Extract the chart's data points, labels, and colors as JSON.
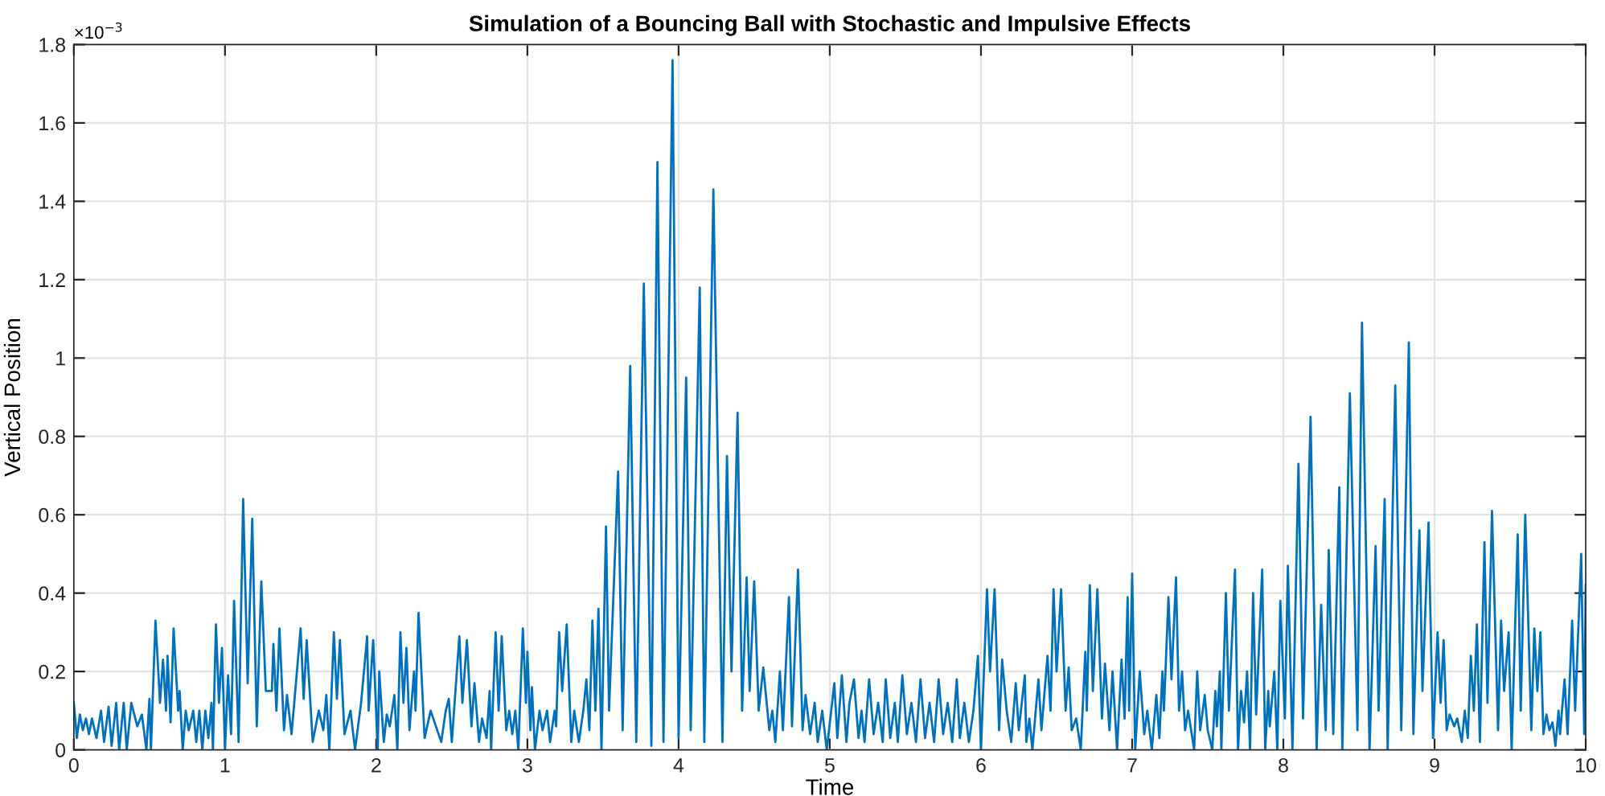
{
  "chart_data": {
    "type": "line",
    "title": "Simulation of a Bouncing Ball with Stochastic and Impulsive Effects",
    "xlabel": "Time",
    "ylabel": "Vertical Position",
    "annotations": [
      "×10$^{−3}$"
    ],
    "xlim": [
      0,
      10
    ],
    "xticks": [
      0,
      1,
      2,
      3,
      4,
      5,
      6,
      7,
      8,
      9,
      10
    ],
    "ylim": [
      0,
      1.8
    ],
    "yticks": [
      0,
      0.2,
      0.4,
      0.6,
      0.8,
      1,
      1.2,
      1.4,
      1.6,
      1.8
    ],
    "grid": true,
    "marker": "none",
    "line_style": "solid",
    "series": [
      {
        "color": "#0072bd",
        "x": [
          0,
          0.02,
          0.04,
          0.06,
          0.08,
          0.1,
          0.12,
          0.15,
          0.18,
          0.2,
          0.23,
          0.25,
          0.28,
          0.3,
          0.33,
          0.35,
          0.38,
          0.42,
          0.45,
          0.48,
          0.5,
          0.51,
          0.54,
          0.57,
          0.59,
          0.61,
          0.62,
          0.64,
          0.66,
          0.69,
          0.7,
          0.72,
          0.74,
          0.76,
          0.79,
          0.81,
          0.83,
          0.85,
          0.87,
          0.89,
          0.91,
          0.92,
          0.94,
          0.96,
          0.98,
          1.0,
          1.02,
          1.04,
          1.06,
          1.09,
          1.12,
          1.15,
          1.18,
          1.21,
          1.24,
          1.27,
          1.31,
          1.32,
          1.34,
          1.36,
          1.39,
          1.41,
          1.44,
          1.5,
          1.52,
          1.54,
          1.58,
          1.62,
          1.65,
          1.67,
          1.69,
          1.72,
          1.74,
          1.76,
          1.79,
          1.83,
          1.86,
          1.9,
          1.94,
          1.95,
          1.98,
          2.01,
          2.02,
          2.05,
          2.07,
          2.09,
          2.12,
          2.14,
          2.16,
          2.18,
          2.2,
          2.22,
          2.25,
          2.26,
          2.28,
          2.32,
          2.36,
          2.43,
          2.46,
          2.48,
          2.5,
          2.55,
          2.57,
          2.6,
          2.63,
          2.65,
          2.68,
          2.7,
          2.73,
          2.75,
          2.76,
          2.79,
          2.81,
          2.83,
          2.86,
          2.88,
          2.9,
          2.92,
          2.94,
          2.97,
          2.99,
          3.0,
          3.02,
          3.03,
          3.05,
          3.08,
          3.1,
          3.13,
          3.15,
          3.18,
          3.19,
          3.21,
          3.23,
          3.26,
          3.29,
          3.31,
          3.34,
          3.37,
          3.39,
          3.41,
          3.43,
          3.45,
          3.47,
          3.49,
          3.52,
          3.54,
          3.6,
          3.63,
          3.68,
          3.72,
          3.77,
          3.82,
          3.86,
          3.9,
          3.96,
          4.0,
          4.05,
          4.08,
          4.14,
          4.17,
          4.23,
          4.29,
          4.32,
          4.35,
          4.39,
          4.42,
          4.45,
          4.47,
          4.5,
          4.53,
          4.56,
          4.6,
          4.62,
          4.64,
          4.67,
          4.69,
          4.73,
          4.75,
          4.79,
          4.82,
          4.84,
          4.87,
          4.9,
          4.92,
          4.95,
          4.98,
          5.03,
          5.05,
          5.08,
          5.11,
          5.13,
          5.16,
          5.19,
          5.21,
          5.23,
          5.26,
          5.29,
          5.32,
          5.35,
          5.37,
          5.4,
          5.43,
          5.45,
          5.48,
          5.51,
          5.54,
          5.57,
          5.6,
          5.63,
          5.66,
          5.69,
          5.72,
          5.75,
          5.78,
          5.81,
          5.84,
          5.86,
          5.89,
          5.92,
          5.95,
          5.98,
          6.0,
          6.04,
          6.06,
          6.09,
          6.12,
          6.14,
          6.17,
          6.2,
          6.23,
          6.25,
          6.29,
          6.3,
          6.32,
          6.34,
          6.38,
          6.4,
          6.44,
          6.46,
          6.48,
          6.5,
          6.53,
          6.56,
          6.58,
          6.6,
          6.63,
          6.66,
          6.69,
          6.7,
          6.72,
          6.74,
          6.77,
          6.8,
          6.82,
          6.85,
          6.87,
          6.9,
          6.93,
          6.95,
          6.97,
          6.98,
          7.0,
          7.02,
          7.05,
          7.08,
          7.1,
          7.13,
          7.16,
          7.18,
          7.2,
          7.21,
          7.24,
          7.26,
          7.29,
          7.31,
          7.33,
          7.35,
          7.37,
          7.41,
          7.43,
          7.45,
          7.48,
          7.5,
          7.53,
          7.55,
          7.56,
          7.58,
          7.59,
          7.62,
          7.64,
          7.68,
          7.7,
          7.72,
          7.74,
          7.76,
          7.78,
          7.8,
          7.82,
          7.86,
          7.88,
          7.9,
          7.91,
          7.94,
          7.96,
          7.98,
          8.01,
          8.03,
          8.06,
          8.1,
          8.13,
          8.18,
          8.22,
          8.25,
          8.28,
          8.3,
          8.33,
          8.37,
          8.39,
          8.44,
          8.49,
          8.52,
          8.57,
          8.61,
          8.63,
          8.67,
          8.69,
          8.74,
          8.78,
          8.83,
          8.86,
          8.9,
          8.92,
          8.96,
          8.99,
          9.02,
          9.04,
          9.06,
          9.08,
          9.1,
          9.13,
          9.15,
          9.18,
          9.2,
          9.22,
          9.24,
          9.26,
          9.28,
          9.3,
          9.33,
          9.35,
          9.38,
          9.42,
          9.44,
          9.46,
          9.49,
          9.51,
          9.55,
          9.57,
          9.6,
          9.64,
          9.66,
          9.68,
          9.7,
          9.72,
          9.74,
          9.76,
          9.78,
          9.8,
          9.82,
          9.83,
          9.86,
          9.88,
          9.91,
          9.93,
          9.97,
          9.99,
          10.0
        ],
        "values": [
          0.12,
          0.03,
          0.09,
          0.05,
          0.08,
          0.04,
          0.08,
          0.03,
          0.1,
          0.02,
          0.11,
          0.01,
          0.12,
          0.0,
          0.12,
          0.0,
          0.12,
          0.06,
          0.09,
          0.0,
          0.13,
          0.0,
          0.33,
          0.12,
          0.23,
          0.1,
          0.24,
          0.07,
          0.31,
          0.1,
          0.15,
          0.0,
          0.1,
          0.05,
          0.1,
          0.02,
          0.1,
          0.0,
          0.1,
          0.03,
          0.12,
          0.0,
          0.32,
          0.12,
          0.26,
          0.0,
          0.19,
          0.04,
          0.38,
          0.02,
          0.64,
          0.17,
          0.59,
          0.06,
          0.43,
          0.15,
          0.15,
          0.27,
          0.1,
          0.31,
          0.05,
          0.14,
          0.04,
          0.31,
          0.13,
          0.28,
          0.02,
          0.1,
          0.05,
          0.14,
          0.0,
          0.3,
          0.13,
          0.28,
          0.04,
          0.1,
          0.0,
          0.12,
          0.29,
          0.1,
          0.28,
          0.0,
          0.2,
          0.02,
          0.09,
          0.06,
          0.14,
          0.0,
          0.3,
          0.12,
          0.26,
          0.05,
          0.2,
          0.1,
          0.35,
          0.03,
          0.1,
          0.02,
          0.1,
          0.13,
          0.02,
          0.29,
          0.12,
          0.28,
          0.06,
          0.17,
          0.02,
          0.08,
          0.03,
          0.15,
          0.0,
          0.3,
          0.1,
          0.29,
          0.05,
          0.1,
          0.04,
          0.1,
          0.0,
          0.31,
          0.12,
          0.25,
          0.05,
          0.16,
          0.0,
          0.1,
          0.05,
          0.1,
          0.02,
          0.1,
          0.06,
          0.3,
          0.15,
          0.32,
          0.02,
          0.1,
          0.02,
          0.1,
          0.18,
          0.05,
          0.33,
          0.1,
          0.36,
          0.0,
          0.57,
          0.1,
          0.71,
          0.05,
          0.98,
          0.02,
          1.19,
          0.01,
          1.5,
          0.02,
          1.76,
          0.03,
          0.95,
          0.05,
          1.18,
          0.02,
          1.43,
          0.02,
          0.75,
          0.2,
          0.86,
          0.1,
          0.44,
          0.15,
          0.43,
          0.1,
          0.21,
          0.05,
          0.1,
          0.02,
          0.2,
          0.05,
          0.39,
          0.06,
          0.46,
          0.05,
          0.14,
          0.04,
          0.12,
          0.02,
          0.1,
          0.0,
          0.17,
          0.03,
          0.19,
          0.02,
          0.12,
          0.18,
          0.03,
          0.1,
          0.02,
          0.18,
          0.04,
          0.12,
          0.02,
          0.18,
          0.03,
          0.12,
          0.02,
          0.19,
          0.04,
          0.12,
          0.02,
          0.18,
          0.03,
          0.12,
          0.02,
          0.18,
          0.04,
          0.12,
          0.02,
          0.18,
          0.03,
          0.12,
          0.02,
          0.1,
          0.24,
          0.0,
          0.41,
          0.2,
          0.41,
          0.05,
          0.23,
          0.1,
          0.02,
          0.17,
          0.05,
          0.19,
          0.02,
          0.08,
          0.0,
          0.18,
          0.05,
          0.24,
          0.1,
          0.41,
          0.2,
          0.41,
          0.1,
          0.21,
          0.05,
          0.08,
          0.0,
          0.25,
          0.1,
          0.42,
          0.15,
          0.41,
          0.08,
          0.22,
          0.05,
          0.2,
          0.0,
          0.23,
          0.08,
          0.39,
          0.1,
          0.45,
          0.0,
          0.2,
          0.04,
          0.1,
          0.0,
          0.14,
          0.03,
          0.2,
          0.1,
          0.39,
          0.18,
          0.44,
          0.1,
          0.2,
          0.05,
          0.1,
          0.0,
          0.2,
          0.05,
          0.14,
          0.05,
          0.0,
          0.15,
          0.06,
          0.2,
          0.0,
          0.4,
          0.1,
          0.46,
          0.0,
          0.15,
          0.07,
          0.2,
          0.0,
          0.4,
          0.09,
          0.46,
          0.0,
          0.15,
          0.06,
          0.2,
          0.0,
          0.38,
          0.08,
          0.47,
          0.0,
          0.73,
          0.08,
          0.85,
          0.0,
          0.37,
          0.05,
          0.51,
          0.04,
          0.67,
          0.0,
          0.91,
          0.05,
          1.09,
          0.0,
          0.52,
          0.1,
          0.64,
          0.0,
          0.93,
          0.05,
          1.04,
          0.04,
          0.56,
          0.15,
          0.58,
          0.03,
          0.3,
          0.12,
          0.28,
          0.05,
          0.09,
          0.06,
          0.08,
          0.02,
          0.1,
          0.03,
          0.24,
          0.1,
          0.32,
          0.02,
          0.53,
          0.12,
          0.61,
          0.05,
          0.33,
          0.15,
          0.3,
          0.0,
          0.55,
          0.1,
          0.6,
          0.05,
          0.31,
          0.15,
          0.3,
          0.04,
          0.09,
          0.05,
          0.07,
          0.01,
          0.1,
          0.04,
          0.18,
          0.04,
          0.33,
          0.1,
          0.5,
          0.04,
          0.42
        ]
      }
    ]
  }
}
